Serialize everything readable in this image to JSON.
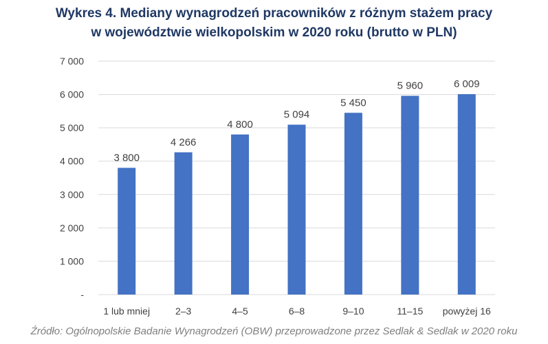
{
  "header": {
    "title_line1": "Wykres 4. Mediany wynagrodzeń pracowników z różnym stażem pracy",
    "title_line2": "w województwie wielkopolskim w 2020 roku (brutto w PLN)"
  },
  "chart_data": {
    "type": "bar",
    "title": "Wykres 4. Mediany wynagrodzeń pracowników z różnym stażem pracy w województwie wielkopolskim w 2020 roku (brutto w PLN)",
    "categories": [
      "1 lub mniej",
      "2–3",
      "4–5",
      "6–8",
      "9–10",
      "11–15",
      "powyżej 16"
    ],
    "values": [
      3800,
      4266,
      4800,
      5094,
      5450,
      5960,
      6009
    ],
    "data_labels": [
      "3 800",
      "4 266",
      "4 800",
      "5 094",
      "5 450",
      "5 960",
      "6 009"
    ],
    "ylim": [
      0,
      7000
    ],
    "yticks": [
      0,
      1000,
      2000,
      3000,
      4000,
      5000,
      6000,
      7000
    ],
    "ytick_labels": [
      "-",
      "1 000",
      "2 000",
      "3 000",
      "4 000",
      "5 000",
      "6 000",
      "7 000"
    ],
    "xlabel": "",
    "ylabel": "",
    "grid": true,
    "legend": "none",
    "bar_color": "#4472c4",
    "grid_color": "#d9d9d9"
  },
  "source": "Źródło: Ogólnopolskie Badanie Wynagrodzeń (OBW) przeprowadzone przez Sedlak & Sedlak w 2020 roku"
}
